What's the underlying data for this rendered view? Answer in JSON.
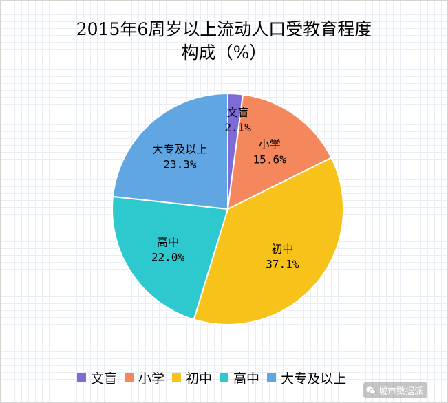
{
  "chart_data": {
    "type": "pie",
    "title_line1": "2015年6周岁以上流动人口受教育程度",
    "title_line2": "构成（%）",
    "categories": [
      "文盲",
      "小学",
      "初中",
      "高中",
      "大专及以上"
    ],
    "values": [
      2.1,
      15.6,
      37.1,
      22.0,
      23.3
    ],
    "value_labels": [
      "2.1%",
      "15.6%",
      "37.1%",
      "22.0%",
      "23.3%"
    ],
    "colors": [
      "#7e6bd6",
      "#f5875d",
      "#f7c31a",
      "#2ec8cf",
      "#5fa6e2"
    ],
    "start_angle_deg": 0,
    "direction": "clockwise",
    "legend_position": "bottom",
    "grid": true
  },
  "watermark": {
    "text": "城市数据派",
    "icon": "wechat-icon"
  }
}
